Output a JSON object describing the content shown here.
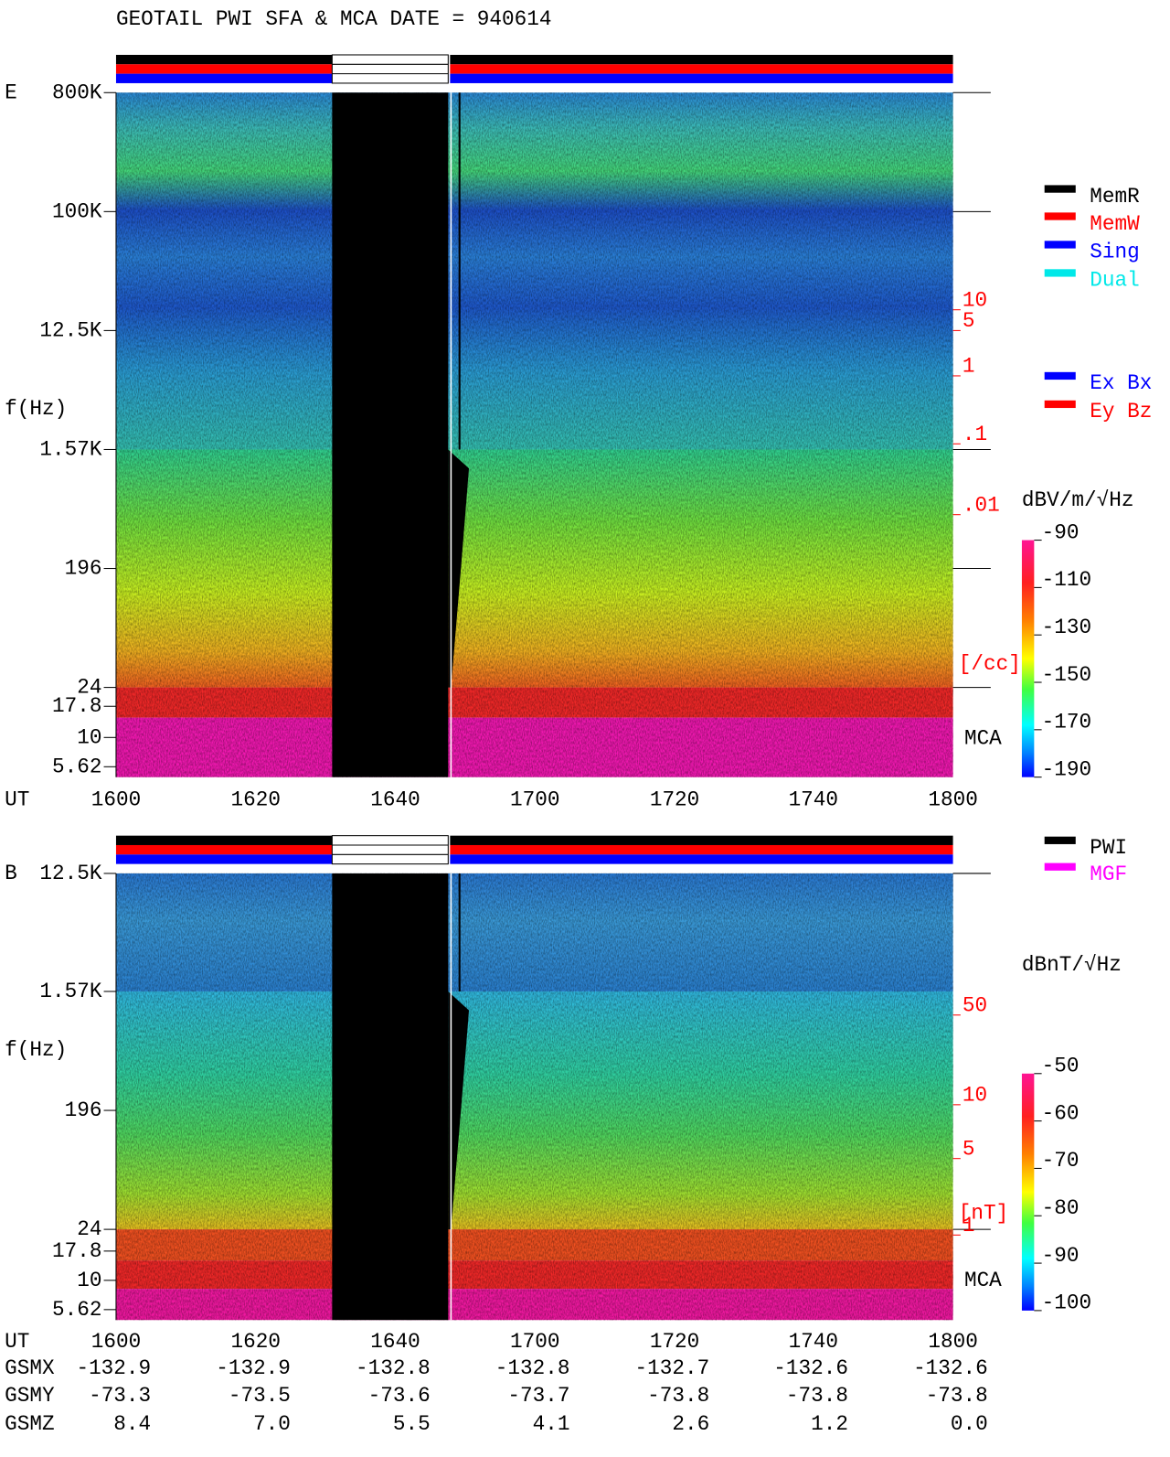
{
  "title": "GEOTAIL  PWI SFA & MCA   DATE = 940614",
  "panels": [
    {
      "label": "E",
      "ylabel": "f(Hz)",
      "yticks": [
        "800K",
        "100K",
        "12.5K",
        "1.57K",
        "196",
        "24",
        "17.8",
        "10",
        "5.62"
      ],
      "density_ticks": [
        "10",
        "5",
        "1",
        ".1",
        ".01",
        "[/cc]"
      ],
      "mca": "MCA",
      "legend": [
        {
          "name": "MemR",
          "color": "#000000"
        },
        {
          "name": "MemW",
          "color": "#ff0000"
        },
        {
          "name": "Sing",
          "color": "#0000ff"
        },
        {
          "name": "Dual",
          "color": "#00e8e8"
        }
      ],
      "legend2": [
        {
          "name": "Ex Bx",
          "color": "#0000ff"
        },
        {
          "name": "Ey Bz",
          "color": "#ff0000"
        }
      ],
      "unit": "dBV/m/√Hz",
      "clim": [
        -190,
        -90
      ],
      "cticks": [
        -90,
        -110,
        -130,
        -150,
        -170,
        -190
      ]
    },
    {
      "label": "B",
      "ylabel": "f(Hz)",
      "yticks": [
        "12.5K",
        "1.57K",
        "196",
        "24",
        "17.8",
        "10",
        "5.62"
      ],
      "density_ticks": [
        "50",
        "10",
        "5",
        "1",
        "[nT]"
      ],
      "mca": "MCA",
      "legend": [
        {
          "name": "PWI",
          "color": "#000000"
        },
        {
          "name": "MGF",
          "color": "#ff00ff"
        }
      ],
      "unit": "dBnT/√Hz",
      "clim": [
        -100,
        -50
      ],
      "cticks": [
        -50,
        -60,
        -70,
        -80,
        -90,
        -100
      ]
    }
  ],
  "xaxis": {
    "label": "UT",
    "ticks": [
      1600,
      1620,
      1640,
      1700,
      1720,
      1740,
      1800
    ]
  },
  "orbit": [
    {
      "label": "GSMX",
      "values": [
        -132.9,
        -132.9,
        -132.8,
        -132.8,
        -132.7,
        -132.6,
        -132.6
      ]
    },
    {
      "label": "GSMY",
      "values": [
        -73.3,
        -73.5,
        -73.6,
        -73.7,
        -73.8,
        -73.8,
        -73.8
      ]
    },
    {
      "label": "GSMZ",
      "values": [
        8.4,
        "7.0",
        5.5,
        4.1,
        2.6,
        1.2,
        "0.0"
      ]
    }
  ]
}
